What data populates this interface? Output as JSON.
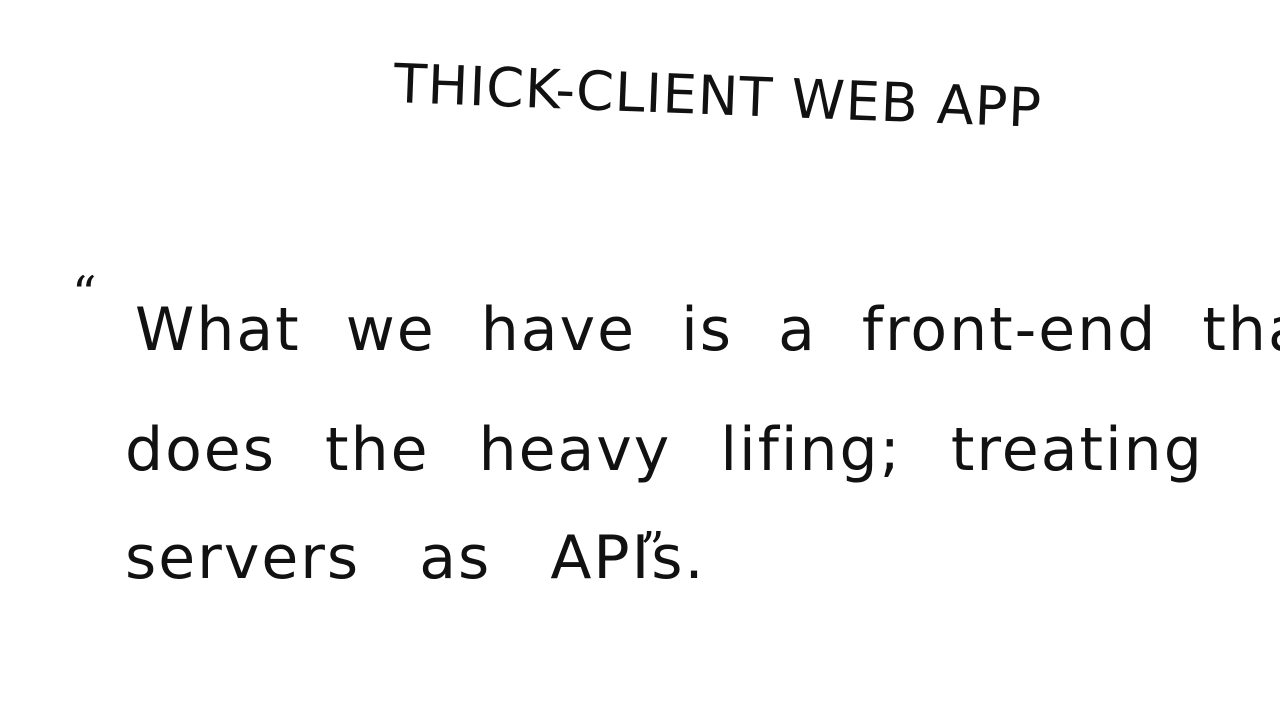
{
  "title": "THICK-CLIENT WEB APP",
  "quote": {
    "open_mark": "“",
    "close_mark": "”",
    "lines": [
      "What we have is a front-end that",
      "does the heavy lifing; treating",
      "servers as APIs."
    ]
  }
}
